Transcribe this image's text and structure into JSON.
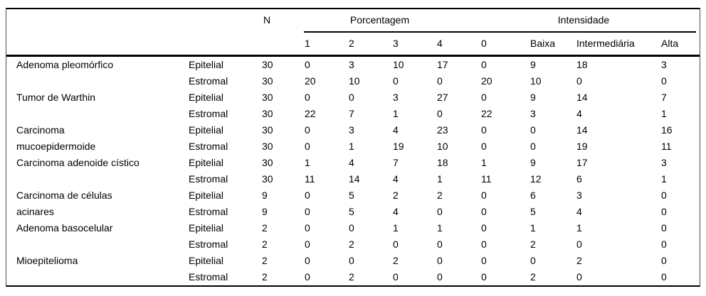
{
  "colors": {
    "background": "#ffffff",
    "text": "#000000",
    "rule": "#000000"
  },
  "table": {
    "group_headers": {
      "n": "N",
      "porcentagem": "Porcentagem",
      "intensidade": "Intensidade"
    },
    "sub_headers": [
      "1",
      "2",
      "3",
      "4",
      "0",
      "Baixa",
      "Intermediária",
      "Alta"
    ],
    "rows": [
      {
        "tumor": "Adenoma pleomórfico",
        "layer": "Epitelial",
        "n": "30",
        "values": [
          "0",
          "3",
          "10",
          "17",
          "0",
          "9",
          "18",
          "3"
        ]
      },
      {
        "tumor": "",
        "layer": "Estromal",
        "n": "30",
        "values": [
          "20",
          "10",
          "0",
          "0",
          "20",
          "10",
          "0",
          "0"
        ]
      },
      {
        "tumor": "Tumor de Warthin",
        "layer": "Epitelial",
        "n": "30",
        "values": [
          "0",
          "0",
          "3",
          "27",
          "0",
          "9",
          "14",
          "7"
        ]
      },
      {
        "tumor": "",
        "layer": "Estromal",
        "n": "30",
        "values": [
          "22",
          "7",
          "1",
          "0",
          "22",
          "3",
          "4",
          "1"
        ]
      },
      {
        "tumor": "Carcinoma",
        "layer": "Epitelial",
        "n": "30",
        "values": [
          "0",
          "3",
          "4",
          "23",
          "0",
          "0",
          "14",
          "16"
        ]
      },
      {
        "tumor": "mucoepidermoide",
        "layer": "Estromal",
        "n": "30",
        "values": [
          "0",
          "1",
          "19",
          "10",
          "0",
          "0",
          "19",
          "11"
        ]
      },
      {
        "tumor": "Carcinoma adenoide cístico",
        "layer": "Epitelial",
        "n": "30",
        "values": [
          "1",
          "4",
          "7",
          "18",
          "1",
          "9",
          "17",
          "3"
        ]
      },
      {
        "tumor": "",
        "layer": "Estromal",
        "n": "30",
        "values": [
          "11",
          "14",
          "4",
          "1",
          "11",
          "12",
          "6",
          "1"
        ]
      },
      {
        "tumor": "Carcinoma de células",
        "layer": "Epitelial",
        "n": "9",
        "values": [
          "0",
          "5",
          "2",
          "2",
          "0",
          "6",
          "3",
          "0"
        ]
      },
      {
        "tumor": "acinares",
        "layer": "Estromal",
        "n": "9",
        "values": [
          "0",
          "5",
          "4",
          "0",
          "0",
          "5",
          "4",
          "0"
        ]
      },
      {
        "tumor": "Adenoma basocelular",
        "layer": "Epitelial",
        "n": "2",
        "values": [
          "0",
          "0",
          "1",
          "1",
          "0",
          "1",
          "1",
          "0"
        ]
      },
      {
        "tumor": "",
        "layer": "Estromal",
        "n": "2",
        "values": [
          "0",
          "2",
          "0",
          "0",
          "0",
          "2",
          "0",
          "0"
        ]
      },
      {
        "tumor": "Mioepitelioma",
        "layer": "Epitelial",
        "n": "2",
        "values": [
          "0",
          "0",
          "2",
          "0",
          "0",
          "0",
          "2",
          "0"
        ]
      },
      {
        "tumor": "",
        "layer": "Estromal",
        "n": "2",
        "values": [
          "0",
          "2",
          "0",
          "0",
          "0",
          "2",
          "0",
          "0"
        ]
      }
    ]
  }
}
